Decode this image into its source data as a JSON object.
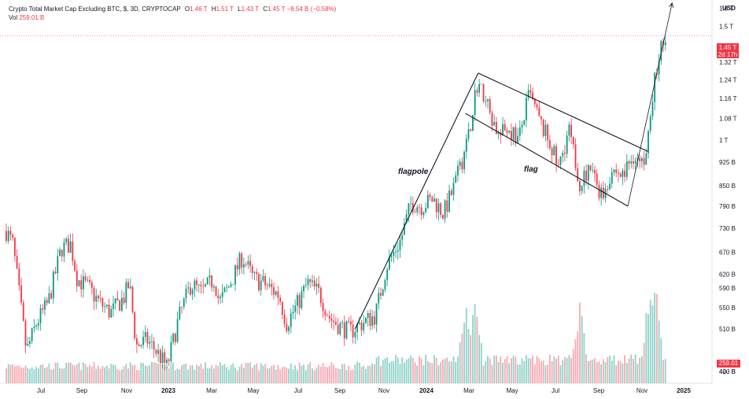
{
  "legend": {
    "title": "Crypto Total Market Cap Excluding BTC, $, 3D, CRYPTOCAP",
    "open_key": "O",
    "open": "1.46 T",
    "high_key": "H",
    "high": "1.51 T",
    "low_key": "L",
    "low": "1.43 T",
    "close_key": "C",
    "close": "1.45 T",
    "change": "−8.54 B (−0.58%)",
    "vol_key": "Vol",
    "vol": "259.01 B"
  },
  "price_axis": {
    "currency": "USD",
    "ticks": [
      "1.6 T",
      "1.5 T",
      "1.4 T",
      "1.32 T",
      "1.24 T",
      "1.16 T",
      "1.08 T",
      "1 T",
      "925 B",
      "850 B",
      "790 B",
      "730 B",
      "670 B",
      "620 B",
      "590 B",
      "550 B",
      "510 B",
      "452 B",
      "424 B",
      "400 B"
    ],
    "last_price": "1.45 T",
    "countdown": "2d 17h",
    "last_volume": "259.01 B"
  },
  "colors": {
    "up": "#089981",
    "down": "#f23645",
    "vol_up": "#8fd3c9",
    "vol_down": "#f7a9b0",
    "annotation": "#131722"
  },
  "chart_data": {
    "type": "candlestick",
    "title": "Crypto Total Market Cap Excluding BTC, $, 3D, CRYPTOCAP",
    "x_ticks": [
      "Jul",
      "Sep",
      "Nov",
      "2023",
      "Mar",
      "May",
      "Jul",
      "Sep",
      "Nov",
      "2024",
      "Mar",
      "May",
      "Jul",
      "Sep",
      "Nov",
      "2025"
    ],
    "y_scale": "log",
    "y_range": [
      400000000000,
      1650000000000
    ],
    "last": {
      "open": 1460000000000.0,
      "high": 1510000000000.0,
      "low": 1430000000000.0,
      "close": 1450000000000.0,
      "volume": 259010000000.0
    },
    "close_path": [
      [
        "2022-05-12",
        740000000000.0
      ],
      [
        "2022-05-25",
        690000000000.0
      ],
      [
        "2022-06-12",
        470000000000.0
      ],
      [
        "2022-06-25",
        520000000000.0
      ],
      [
        "2022-07-12",
        560000000000.0
      ],
      [
        "2022-08-01",
        680000000000.0
      ],
      [
        "2022-08-15",
        690000000000.0
      ],
      [
        "2022-08-25",
        610000000000.0
      ],
      [
        "2022-09-10",
        590000000000.0
      ],
      [
        "2022-09-25",
        560000000000.0
      ],
      [
        "2022-10-10",
        540000000000.0
      ],
      [
        "2022-10-28",
        570000000000.0
      ],
      [
        "2022-11-05",
        600000000000.0
      ],
      [
        "2022-11-15",
        480000000000.0
      ],
      [
        "2022-12-01",
        490000000000.0
      ],
      [
        "2022-12-15",
        470000000000.0
      ],
      [
        "2022-12-30",
        445000000000.0
      ],
      [
        "2023-01-15",
        530000000000.0
      ],
      [
        "2023-02-01",
        600000000000.0
      ],
      [
        "2023-02-15",
        580000000000.0
      ],
      [
        "2023-03-05",
        610000000000.0
      ],
      [
        "2023-03-12",
        560000000000.0
      ],
      [
        "2023-03-25",
        590000000000.0
      ],
      [
        "2023-04-15",
        660000000000.0
      ],
      [
        "2023-05-01",
        610000000000.0
      ],
      [
        "2023-05-15",
        600000000000.0
      ],
      [
        "2023-06-05",
        575000000000.0
      ],
      [
        "2023-06-15",
        520000000000.0
      ],
      [
        "2023-07-01",
        560000000000.0
      ],
      [
        "2023-07-15",
        600000000000.0
      ],
      [
        "2023-08-01",
        580000000000.0
      ],
      [
        "2023-08-17",
        530000000000.0
      ],
      [
        "2023-09-01",
        515000000000.0
      ],
      [
        "2023-09-15",
        505000000000.0
      ],
      [
        "2023-10-01",
        520000000000.0
      ],
      [
        "2023-10-20",
        535000000000.0
      ],
      [
        "2023-11-05",
        640000000000.0
      ],
      [
        "2023-11-25",
        700000000000.0
      ],
      [
        "2023-12-10",
        800000000000.0
      ],
      [
        "2023-12-25",
        790000000000.0
      ],
      [
        "2024-01-10",
        810000000000.0
      ],
      [
        "2024-01-25",
        770000000000.0
      ],
      [
        "2024-02-10",
        850000000000.0
      ],
      [
        "2024-02-28",
        1000000000000.0
      ],
      [
        "2024-03-13",
        1230000000000.0
      ],
      [
        "2024-03-25",
        1150000000000.0
      ],
      [
        "2024-04-13",
        1010000000000.0
      ],
      [
        "2024-04-25",
        1050000000000.0
      ],
      [
        "2024-05-10",
        1000000000000.0
      ],
      [
        "2024-05-25",
        1180000000000.0
      ],
      [
        "2024-06-10",
        1060000000000.0
      ],
      [
        "2024-06-25",
        980000000000.0
      ],
      [
        "2024-07-05",
        900000000000.0
      ],
      [
        "2024-07-20",
        1040000000000.0
      ],
      [
        "2024-08-05",
        860000000000.0
      ],
      [
        "2024-08-20",
        900000000000.0
      ],
      [
        "2024-09-06",
        820000000000.0
      ],
      [
        "2024-09-20",
        900000000000.0
      ],
      [
        "2024-10-05",
        880000000000.0
      ],
      [
        "2024-10-20",
        950000000000.0
      ],
      [
        "2024-11-05",
        900000000000.0
      ],
      [
        "2024-11-12",
        1080000000000.0
      ],
      [
        "2024-11-20",
        1250000000000.0
      ],
      [
        "2024-12-01",
        1420000000000.0
      ],
      [
        "2024-12-07",
        1450000000000.0
      ]
    ],
    "volume_spikes": [
      [
        "2024-02-25",
        460000000000.0
      ],
      [
        "2024-03-10",
        460000000000.0
      ],
      [
        "2024-08-05",
        430000000000.0
      ],
      [
        "2024-11-12",
        530000000000.0
      ],
      [
        "2024-11-20",
        560000000000.0
      ]
    ],
    "annotations": {
      "flagpole_label": "flagpole",
      "flag_label": "flag",
      "flagpole_line": [
        [
          "2023-09-22",
          510000000000.0
        ],
        [
          "2024-03-14",
          1270000000000.0
        ]
      ],
      "flag_upper": [
        [
          "2024-03-14",
          1270000000000.0
        ],
        [
          "2024-11-10",
          960000000000.0
        ]
      ],
      "flag_lower": [
        [
          "2024-02-25",
          1100000000000.0
        ],
        [
          "2024-10-12",
          790000000000.0
        ]
      ],
      "projection": [
        [
          "2024-10-12",
          790000000000.0
        ],
        [
          "2024-12-15",
          1630000000000.0
        ]
      ]
    }
  }
}
